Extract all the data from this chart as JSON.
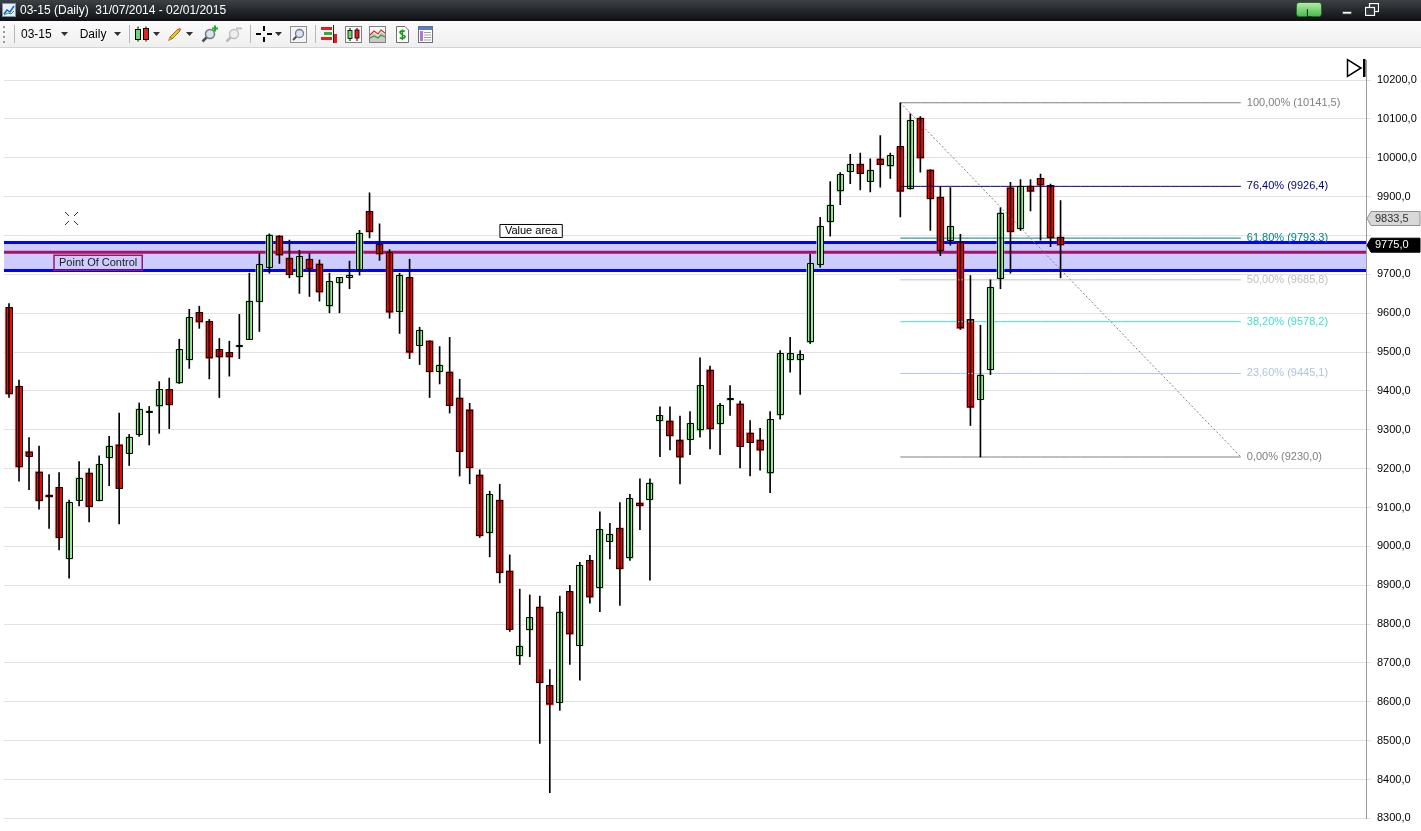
{
  "chart_data": {
    "type": "candlestick",
    "title": "03-15 (Daily)  31/07/2014 - 02/01/2015",
    "annotations": [
      "03-15",
      "Daily",
      "L",
      "9833,5",
      "9775,0"
    ],
    "categories": [
      null,
      null,
      null,
      null,
      null,
      null,
      null,
      null,
      null,
      null,
      null,
      null,
      null,
      null,
      null,
      null,
      null,
      null,
      null,
      null,
      null,
      null,
      null,
      null,
      null,
      null,
      null,
      null,
      null,
      null,
      null,
      null,
      null,
      null,
      null,
      null,
      null,
      null,
      null,
      null,
      null,
      null,
      null,
      null,
      null,
      null,
      null,
      null,
      null,
      null,
      null,
      null,
      null,
      null,
      null,
      null,
      null,
      null,
      null,
      null,
      null,
      null,
      null,
      null,
      null,
      null,
      null,
      null,
      null,
      null,
      null,
      null,
      null,
      null,
      null,
      null,
      null,
      null,
      null,
      null,
      null,
      null,
      null,
      null,
      null,
      null,
      null,
      null,
      null,
      null,
      null,
      null,
      null,
      null,
      null,
      null,
      null,
      null,
      null,
      null,
      null,
      null,
      null,
      null,
      null,
      null,
      null,
      null,
      null,
      null,
      null,
      null,
      null,
      null,
      null,
      null,
      null,
      null,
      null,
      null,
      null,
      null,
      null,
      null,
      null,
      null,
      null,
      null,
      null,
      null,
      null,
      null,
      null,
      null,
      null,
      null
    ],
    "ohlc": [
      [
        9615,
        9625,
        9383,
        9392
      ],
      [
        9412,
        9428,
        9168,
        9204
      ],
      [
        9244,
        9280,
        9146,
        9232
      ],
      [
        9192,
        9258,
        9096,
        9117
      ],
      [
        9132,
        9185,
        9046,
        9127
      ],
      [
        9152,
        9190,
        8991,
        9022
      ],
      [
        8967,
        9119,
        8918,
        9114
      ],
      [
        9119,
        9218,
        9104,
        9177
      ],
      [
        9189,
        9200,
        9063,
        9102
      ],
      [
        9117,
        9233,
        9117,
        9212
      ],
      [
        9227,
        9283,
        9156,
        9259
      ],
      [
        9262,
        9343,
        9058,
        9149
      ],
      [
        9239,
        9288,
        9208,
        9282
      ],
      [
        9287,
        9369,
        9283,
        9354
      ],
      [
        9344,
        9360,
        9261,
        9349
      ],
      [
        9359,
        9424,
        9291,
        9404
      ],
      [
        9404,
        9433,
        9303,
        9364
      ],
      [
        9419,
        9533,
        9419,
        9507
      ],
      [
        9479,
        9610,
        9458,
        9589
      ],
      [
        9602,
        9618,
        9561,
        9577
      ],
      [
        9579,
        9584,
        9431,
        9484
      ],
      [
        9507,
        9535,
        9383,
        9487
      ],
      [
        9499,
        9528,
        9438,
        9487
      ],
      [
        9513,
        9597,
        9483,
        9513
      ],
      [
        9532,
        9703,
        9532,
        9632
      ],
      [
        9629,
        9753,
        9553,
        9727
      ],
      [
        9718,
        9804,
        9703,
        9802
      ],
      [
        9799,
        9800,
        9728,
        9749
      ],
      [
        9742,
        9788,
        9691,
        9699
      ],
      [
        9692,
        9762,
        9651,
        9747
      ],
      [
        9739,
        9753,
        9643,
        9713
      ],
      [
        9727,
        9737,
        9631,
        9654
      ],
      [
        9617,
        9703,
        9601,
        9682
      ],
      [
        9677,
        9692,
        9601,
        9692
      ],
      [
        9692,
        9734,
        9663,
        9699
      ],
      [
        9713,
        9813,
        9698,
        9807
      ],
      [
        9862,
        9910,
        9794,
        9809
      ],
      [
        9777,
        9830,
        9736,
        9752
      ],
      [
        9757,
        9764,
        9587,
        9602
      ],
      [
        9604,
        9703,
        9548,
        9699
      ],
      [
        9692,
        9739,
        9483,
        9498
      ],
      [
        9517,
        9564,
        9468,
        9557
      ],
      [
        9529,
        9529,
        9383,
        9449
      ],
      [
        9449,
        9514,
        9418,
        9467
      ],
      [
        9449,
        9538,
        9343,
        9362
      ],
      [
        9382,
        9430,
        9181,
        9244
      ],
      [
        9352,
        9368,
        9161,
        9202
      ],
      [
        9184,
        9197,
        9023,
        9027
      ],
      [
        9034,
        9142,
        8973,
        9134
      ],
      [
        9119,
        9160,
        8906,
        8932
      ],
      [
        8937,
        8978,
        8781,
        8786
      ],
      [
        8717,
        8890,
        8696,
        8744
      ],
      [
        8784,
        8875,
        8716,
        8817
      ],
      [
        8844,
        8872,
        8493,
        8649
      ],
      [
        8642,
        8683,
        8366,
        8592
      ],
      [
        8597,
        8872,
        8578,
        8832
      ],
      [
        8884,
        8900,
        8696,
        8774
      ],
      [
        8744,
        8959,
        8656,
        8952
      ],
      [
        8964,
        8977,
        8854,
        8869
      ],
      [
        8892,
        9089,
        8832,
        9044
      ],
      [
        9012,
        9059,
        8968,
        9032
      ],
      [
        9047,
        9113,
        8848,
        8942
      ],
      [
        8969,
        9134,
        8964,
        9124
      ],
      [
        9112,
        9174,
        9043,
        9104
      ],
      [
        9119,
        9174,
        8913,
        9164
      ],
      [
        9322,
        9359,
        9231,
        9337
      ],
      [
        9323,
        9359,
        9248,
        9284
      ],
      [
        9274,
        9335,
        9161,
        9229
      ],
      [
        9274,
        9347,
        9236,
        9317
      ],
      [
        9297,
        9485,
        9281,
        9414
      ],
      [
        9454,
        9464,
        9251,
        9302
      ],
      [
        9314,
        9368,
        9236,
        9364
      ],
      [
        9376,
        9414,
        9337,
        9376
      ],
      [
        9367,
        9374,
        9202,
        9257
      ],
      [
        9292,
        9324,
        9181,
        9267
      ],
      [
        9274,
        9304,
        9196,
        9247
      ],
      [
        9187,
        9347,
        9138,
        9327
      ],
      [
        9337,
        9504,
        9327,
        9497
      ],
      [
        9479,
        9538,
        9448,
        9497
      ],
      [
        9479,
        9504,
        9391,
        9494
      ],
      [
        9524,
        9752,
        9522,
        9728
      ],
      [
        9723,
        9847,
        9718,
        9824
      ],
      [
        9834,
        9939,
        9798,
        9879
      ],
      [
        9912,
        9962,
        9879,
        9957
      ],
      [
        9964,
        10009,
        9933,
        9984
      ],
      [
        9984,
        10012,
        9917,
        9959
      ],
      [
        9939,
        9997,
        9912,
        9969
      ],
      [
        9997,
        10057,
        9924,
        9982
      ],
      [
        9977,
        10012,
        9947,
        10006
      ],
      [
        10029,
        10141.5,
        9848,
        9913
      ],
      [
        9919,
        10113,
        9919,
        10097
      ],
      [
        10102,
        10106,
        9963,
        9999
      ],
      [
        9969,
        9969,
        9813,
        9894
      ],
      [
        9899,
        9925,
        9748,
        9761
      ],
      [
        9786,
        9923,
        9775,
        9824
      ],
      [
        9782,
        9803,
        9558,
        9561
      ],
      [
        9584,
        9697,
        9311,
        9357
      ],
      [
        9377,
        9569,
        9230,
        9442
      ],
      [
        9454,
        9686,
        9442,
        9667
      ],
      [
        9688,
        9871,
        9663,
        9859
      ],
      [
        9923,
        9937,
        9703,
        9809
      ],
      [
        9816,
        9944,
        9813,
        9927
      ],
      [
        9927,
        9944,
        9863,
        9913
      ],
      [
        9947,
        9958,
        9788,
        9929
      ],
      [
        9929,
        9932,
        9771,
        9793
      ],
      [
        9796,
        9890,
        9691,
        9775
      ],
      null,
      null,
      null,
      null,
      null,
      null,
      null,
      null,
      null,
      null,
      null,
      null,
      null,
      null,
      null,
      null,
      null,
      null,
      null,
      null,
      null,
      null,
      null,
      null,
      null,
      null,
      null,
      null,
      null,
      null
    ],
    "colors": [
      "#ff0000",
      "#ff0000",
      "#ff0000",
      "#ff0000",
      "#ff0000",
      "#ff0000",
      "#90ee90",
      "#90ee90",
      "#ff0000",
      "#90ee90",
      "#90ee90",
      "#ff0000",
      "#90ee90",
      "#90ee90",
      "#90ee90",
      "#90ee90",
      "#ff0000",
      "#90ee90",
      "#90ee90",
      "#ff0000",
      "#ff0000",
      "#ff0000",
      "#ff0000",
      "#90ee90",
      "#90ee90",
      "#90ee90",
      "#90ee90",
      "#ff0000",
      "#ff0000",
      "#90ee90",
      "#ff0000",
      "#ff0000",
      "#90ee90",
      "#90ee90",
      "#90ee90",
      "#90ee90",
      "#ff0000",
      "#ff0000",
      "#ff0000",
      "#90ee90",
      "#ff0000",
      "#90ee90",
      "#ff0000",
      "#90ee90",
      "#ff0000",
      "#ff0000",
      "#ff0000",
      "#ff0000",
      "#90ee90",
      "#ff0000",
      "#ff0000",
      "#90ee90",
      "#90ee90",
      "#ff0000",
      "#ff0000",
      "#90ee90",
      "#ff0000",
      "#90ee90",
      "#ff0000",
      "#90ee90",
      "#90ee90",
      "#ff0000",
      "#90ee90",
      "#ff0000",
      "#90ee90",
      "#90ee90",
      "#ff0000",
      "#ff0000",
      "#90ee90",
      "#90ee90",
      "#ff0000",
      "#90ee90",
      "#90ee90",
      "#ff0000",
      "#ff0000",
      "#ff0000",
      "#90ee90",
      "#90ee90",
      "#90ee90",
      "#90ee90",
      "#90ee90",
      "#90ee90",
      "#90ee90",
      "#90ee90",
      "#90ee90",
      "#ff0000",
      "#90ee90",
      "#ff0000",
      "#90ee90",
      "#ff0000",
      "#90ee90",
      "#ff0000",
      "#ff0000",
      "#ff0000",
      "#90ee90",
      "#ff0000",
      "#ff0000",
      "#90ee90",
      "#90ee90",
      "#90ee90",
      "#ff0000",
      "#90ee90",
      "#ff0000",
      "#ff0000",
      "#ff0000",
      "#ff0000",
      null,
      null,
      null,
      null,
      null,
      null,
      null,
      null,
      null,
      null,
      null,
      null,
      null,
      null,
      null,
      null,
      null,
      null,
      null,
      null,
      null,
      null,
      null,
      null,
      null,
      null,
      null,
      null,
      null,
      null
    ],
    "series": [
      {
        "type": "line",
        "name": "100,00% (10141,5)",
        "color": "#808080",
        "values": [
          null,
          null,
          null,
          null,
          null,
          null,
          null,
          null,
          null,
          null,
          null,
          null,
          null,
          null,
          null,
          null,
          null,
          null,
          null,
          null,
          null,
          null,
          null,
          null,
          null,
          null,
          null,
          null,
          null,
          null,
          null,
          null,
          null,
          null,
          null,
          null,
          null,
          null,
          null,
          null,
          null,
          null,
          null,
          null,
          null,
          null,
          null,
          null,
          null,
          null,
          null,
          null,
          null,
          null,
          null,
          null,
          null,
          null,
          null,
          null,
          null,
          null,
          null,
          null,
          null,
          null,
          null,
          null,
          null,
          null,
          null,
          null,
          null,
          null,
          null,
          null,
          null,
          null,
          null,
          null,
          null,
          null,
          null,
          null,
          null,
          null,
          null,
          null,
          null,
          10141.5,
          10141.5,
          10141.5,
          10141.5,
          10141.5,
          10141.5,
          10141.5,
          10141.5,
          10141.5,
          10141.5,
          10141.5,
          10141.5,
          10141.5,
          10141.5,
          10141.5,
          10141.5,
          10141.5,
          10141.5,
          10141.5,
          10141.5,
          10141.5,
          10141.5,
          10141.5,
          10141.5,
          10141.5,
          10141.5,
          10141.5,
          10141.5,
          10141.5,
          10141.5,
          10141.5,
          10141.5,
          10141.5,
          10141.5,
          10141.5,
          null,
          null,
          null,
          null,
          null,
          null,
          null,
          null,
          null,
          null,
          null,
          null
        ]
      },
      {
        "type": "line",
        "name": "76,40% (9926,4)",
        "color": "#000080",
        "values": [
          null,
          null,
          null,
          null,
          null,
          null,
          null,
          null,
          null,
          null,
          null,
          null,
          null,
          null,
          null,
          null,
          null,
          null,
          null,
          null,
          null,
          null,
          null,
          null,
          null,
          null,
          null,
          null,
          null,
          null,
          null,
          null,
          null,
          null,
          null,
          null,
          null,
          null,
          null,
          null,
          null,
          null,
          null,
          null,
          null,
          null,
          null,
          null,
          null,
          null,
          null,
          null,
          null,
          null,
          null,
          null,
          null,
          null,
          null,
          null,
          null,
          null,
          null,
          null,
          null,
          null,
          null,
          null,
          null,
          null,
          null,
          null,
          null,
          null,
          null,
          null,
          null,
          null,
          null,
          null,
          null,
          null,
          null,
          null,
          null,
          null,
          null,
          null,
          null,
          9926.4,
          9926.4,
          9926.4,
          9926.4,
          9926.4,
          9926.4,
          9926.4,
          9926.4,
          9926.4,
          9926.4,
          9926.4,
          9926.4,
          9926.4,
          9926.4,
          9926.4,
          9926.4,
          9926.4,
          9926.4,
          9926.4,
          9926.4,
          9926.4,
          9926.4,
          9926.4,
          9926.4,
          9926.4,
          9926.4,
          9926.4,
          9926.4,
          9926.4,
          9926.4,
          9926.4,
          9926.4,
          9926.4,
          9926.4,
          9926.4,
          null,
          null,
          null,
          null,
          null,
          null,
          null,
          null,
          null,
          null,
          null,
          null
        ]
      },
      {
        "type": "line",
        "name": "61,80% (9793,3)",
        "color": "#008080",
        "values": [
          null,
          null,
          null,
          null,
          null,
          null,
          null,
          null,
          null,
          null,
          null,
          null,
          null,
          null,
          null,
          null,
          null,
          null,
          null,
          null,
          null,
          null,
          null,
          null,
          null,
          null,
          null,
          null,
          null,
          null,
          null,
          null,
          null,
          null,
          null,
          null,
          null,
          null,
          null,
          null,
          null,
          null,
          null,
          null,
          null,
          null,
          null,
          null,
          null,
          null,
          null,
          null,
          null,
          null,
          null,
          null,
          null,
          null,
          null,
          null,
          null,
          null,
          null,
          null,
          null,
          null,
          null,
          null,
          null,
          null,
          null,
          null,
          null,
          null,
          null,
          null,
          null,
          null,
          null,
          null,
          null,
          null,
          null,
          null,
          null,
          null,
          null,
          null,
          null,
          9793.3,
          9793.3,
          9793.3,
          9793.3,
          9793.3,
          9793.3,
          9793.3,
          9793.3,
          9793.3,
          9793.3,
          9793.3,
          9793.3,
          9793.3,
          9793.3,
          9793.3,
          9793.3,
          9793.3,
          9793.3,
          9793.3,
          9793.3,
          9793.3,
          9793.3,
          9793.3,
          9793.3,
          9793.3,
          9793.3,
          9793.3,
          9793.3,
          9793.3,
          9793.3,
          9793.3,
          9793.3,
          9793.3,
          9793.3,
          9793.3,
          null,
          null,
          null,
          null,
          null,
          null,
          null,
          null,
          null,
          null,
          null,
          null
        ]
      },
      {
        "type": "line",
        "name": "50,00% (9685,8)",
        "color": "#c0c0c0",
        "values": [
          null,
          null,
          null,
          null,
          null,
          null,
          null,
          null,
          null,
          null,
          null,
          null,
          null,
          null,
          null,
          null,
          null,
          null,
          null,
          null,
          null,
          null,
          null,
          null,
          null,
          null,
          null,
          null,
          null,
          null,
          null,
          null,
          null,
          null,
          null,
          null,
          null,
          null,
          null,
          null,
          null,
          null,
          null,
          null,
          null,
          null,
          null,
          null,
          null,
          null,
          null,
          null,
          null,
          null,
          null,
          null,
          null,
          null,
          null,
          null,
          null,
          null,
          null,
          null,
          null,
          null,
          null,
          null,
          null,
          null,
          null,
          null,
          null,
          null,
          null,
          null,
          null,
          null,
          null,
          null,
          null,
          null,
          null,
          null,
          null,
          null,
          null,
          null,
          null,
          9685.8,
          9685.8,
          9685.8,
          9685.8,
          9685.8,
          9685.8,
          9685.8,
          9685.8,
          9685.8,
          9685.8,
          9685.8,
          9685.8,
          9685.8,
          9685.8,
          9685.8,
          9685.8,
          9685.8,
          9685.8,
          9685.8,
          9685.8,
          9685.8,
          9685.8,
          9685.8,
          9685.8,
          9685.8,
          9685.8,
          9685.8,
          9685.8,
          9685.8,
          9685.8,
          9685.8,
          9685.8,
          9685.8,
          9685.8,
          9685.8,
          null,
          null,
          null,
          null,
          null,
          null,
          null,
          null,
          null,
          null,
          null,
          null
        ]
      },
      {
        "type": "line",
        "name": "38,20% (9578,2)",
        "color": "#40e0d0",
        "values": [
          null,
          null,
          null,
          null,
          null,
          null,
          null,
          null,
          null,
          null,
          null,
          null,
          null,
          null,
          null,
          null,
          null,
          null,
          null,
          null,
          null,
          null,
          null,
          null,
          null,
          null,
          null,
          null,
          null,
          null,
          null,
          null,
          null,
          null,
          null,
          null,
          null,
          null,
          null,
          null,
          null,
          null,
          null,
          null,
          null,
          null,
          null,
          null,
          null,
          null,
          null,
          null,
          null,
          null,
          null,
          null,
          null,
          null,
          null,
          null,
          null,
          null,
          null,
          null,
          null,
          null,
          null,
          null,
          null,
          null,
          null,
          null,
          null,
          null,
          null,
          null,
          null,
          null,
          null,
          null,
          null,
          null,
          null,
          null,
          null,
          null,
          null,
          null,
          null,
          9578.2,
          9578.2,
          9578.2,
          9578.2,
          9578.2,
          9578.2,
          9578.2,
          9578.2,
          9578.2,
          9578.2,
          9578.2,
          9578.2,
          9578.2,
          9578.2,
          9578.2,
          9578.2,
          9578.2,
          9578.2,
          9578.2,
          9578.2,
          9578.2,
          9578.2,
          9578.2,
          9578.2,
          9578.2,
          9578.2,
          9578.2,
          9578.2,
          9578.2,
          9578.2,
          9578.2,
          9578.2,
          9578.2,
          9578.2,
          9578.2,
          null,
          null,
          null,
          null,
          null,
          null,
          null,
          null,
          null,
          null,
          null,
          null
        ]
      },
      {
        "type": "line",
        "name": "23,60% (9445,1)",
        "color": "#b0c4de",
        "values": [
          null,
          null,
          null,
          null,
          null,
          null,
          null,
          null,
          null,
          null,
          null,
          null,
          null,
          null,
          null,
          null,
          null,
          null,
          null,
          null,
          null,
          null,
          null,
          null,
          null,
          null,
          null,
          null,
          null,
          null,
          null,
          null,
          null,
          null,
          null,
          null,
          null,
          null,
          null,
          null,
          null,
          null,
          null,
          null,
          null,
          null,
          null,
          null,
          null,
          null,
          null,
          null,
          null,
          null,
          null,
          null,
          null,
          null,
          null,
          null,
          null,
          null,
          null,
          null,
          null,
          null,
          null,
          null,
          null,
          null,
          null,
          null,
          null,
          null,
          null,
          null,
          null,
          null,
          null,
          null,
          null,
          null,
          null,
          null,
          null,
          null,
          null,
          null,
          null,
          9445.1,
          9445.1,
          9445.1,
          9445.1,
          9445.1,
          9445.1,
          9445.1,
          9445.1,
          9445.1,
          9445.1,
          9445.1,
          9445.1,
          9445.1,
          9445.1,
          9445.1,
          9445.1,
          9445.1,
          9445.1,
          9445.1,
          9445.1,
          9445.1,
          9445.1,
          9445.1,
          9445.1,
          9445.1,
          9445.1,
          9445.1,
          9445.1,
          9445.1,
          9445.1,
          9445.1,
          9445.1,
          9445.1,
          9445.1,
          9445.1,
          null,
          null,
          null,
          null,
          null,
          null,
          null,
          null,
          null,
          null,
          null,
          null
        ]
      },
      {
        "type": "line",
        "name": "0,00% (9230,0)",
        "color": "#808080",
        "values": [
          null,
          null,
          null,
          null,
          null,
          null,
          null,
          null,
          null,
          null,
          null,
          null,
          null,
          null,
          null,
          null,
          null,
          null,
          null,
          null,
          null,
          null,
          null,
          null,
          null,
          null,
          null,
          null,
          null,
          null,
          null,
          null,
          null,
          null,
          null,
          null,
          null,
          null,
          null,
          null,
          null,
          null,
          null,
          null,
          null,
          null,
          null,
          null,
          null,
          null,
          null,
          null,
          null,
          null,
          null,
          null,
          null,
          null,
          null,
          null,
          null,
          null,
          null,
          null,
          null,
          null,
          null,
          null,
          null,
          null,
          null,
          null,
          null,
          null,
          null,
          null,
          null,
          null,
          null,
          null,
          null,
          null,
          null,
          null,
          null,
          null,
          null,
          null,
          null,
          9230,
          9230,
          9230,
          9230,
          9230,
          9230,
          9230,
          9230,
          9230,
          9230,
          9230,
          9230,
          9230,
          9230,
          9230,
          9230,
          9230,
          9230,
          9230,
          9230,
          9230,
          9230,
          9230,
          9230,
          9230,
          9230,
          9230,
          9230,
          9230,
          9230,
          9230,
          9230,
          9230,
          9230,
          9230,
          null,
          null,
          null,
          null,
          null,
          null,
          null,
          null,
          null,
          null,
          null,
          null
        ]
      },
      {
        "type": "line",
        "color": "#808080",
        "line_style": "dotted",
        "values": [
          null,
          null,
          null,
          null,
          null,
          null,
          null,
          null,
          null,
          null,
          null,
          null,
          null,
          null,
          null,
          null,
          null,
          null,
          null,
          null,
          null,
          null,
          null,
          null,
          null,
          null,
          null,
          null,
          null,
          null,
          null,
          null,
          null,
          null,
          null,
          null,
          null,
          null,
          null,
          null,
          null,
          null,
          null,
          null,
          null,
          null,
          null,
          null,
          null,
          null,
          null,
          null,
          null,
          null,
          null,
          null,
          null,
          null,
          null,
          null,
          null,
          null,
          null,
          null,
          null,
          null,
          null,
          null,
          null,
          null,
          null,
          null,
          null,
          null,
          null,
          null,
          null,
          null,
          null,
          null,
          null,
          null,
          null,
          null,
          null,
          null,
          null,
          null,
          null,
          10141.5,
          10115,
          10088,
          10061,
          10034,
          10007,
          9981,
          9954,
          9927,
          9900,
          9873,
          9847,
          9820,
          9793,
          9766,
          9739,
          9713,
          9686,
          9659,
          9632,
          9605,
          9579,
          9552,
          9525,
          9498,
          9471,
          9445,
          9418,
          9391,
          9364,
          9337,
          9310,
          9284,
          9257,
          9230,
          null,
          null,
          null,
          null,
          null,
          null,
          null,
          null,
          null,
          null,
          null,
          null
        ]
      }
    ],
    "bands": [
      {
        "axis": "y",
        "from": 9710,
        "to": 9782,
        "label": "Value area",
        "color": "#ccccff"
      }
    ],
    "ref_lines": [
      {
        "axis": "y",
        "value": 9782,
        "color": "#0000ff"
      },
      {
        "axis": "y",
        "value": 9710,
        "color": "#0000ff"
      },
      {
        "axis": "y",
        "value": 9757,
        "label": "Point Of Control",
        "color": "#a0146a"
      }
    ],
    "ylim": [
      8300,
      10250
    ],
    "yticks": [
      {
        "value": 8300,
        "label": "8300,0"
      },
      {
        "value": 8400,
        "label": "8400,0"
      },
      {
        "value": 8500,
        "label": "8500,0"
      },
      {
        "value": 8600,
        "label": "8600,0"
      },
      {
        "value": 8700,
        "label": "8700,0"
      },
      {
        "value": 8800,
        "label": "8800,0"
      },
      {
        "value": 8900,
        "label": "8900,0"
      },
      {
        "value": 9000,
        "label": "9000,0"
      },
      {
        "value": 9100,
        "label": "9100,0"
      },
      {
        "value": 9200,
        "label": "9200,0"
      },
      {
        "value": 9300,
        "label": "9300,0"
      },
      {
        "value": 9400,
        "label": "9400,0"
      },
      {
        "value": 9500,
        "label": "9500,0"
      },
      {
        "value": 9600,
        "label": "9600,0"
      },
      {
        "value": 9700,
        "label": "9700,0"
      },
      {
        "value": 9800,
        "label": null
      },
      {
        "value": 9900,
        "label": "9900,0"
      },
      {
        "value": 10000,
        "label": "10000,0"
      },
      {
        "value": 10100,
        "label": "10100,0"
      },
      {
        "value": 10200,
        "label": "10200,0"
      }
    ],
    "grid": "y"
  }
}
